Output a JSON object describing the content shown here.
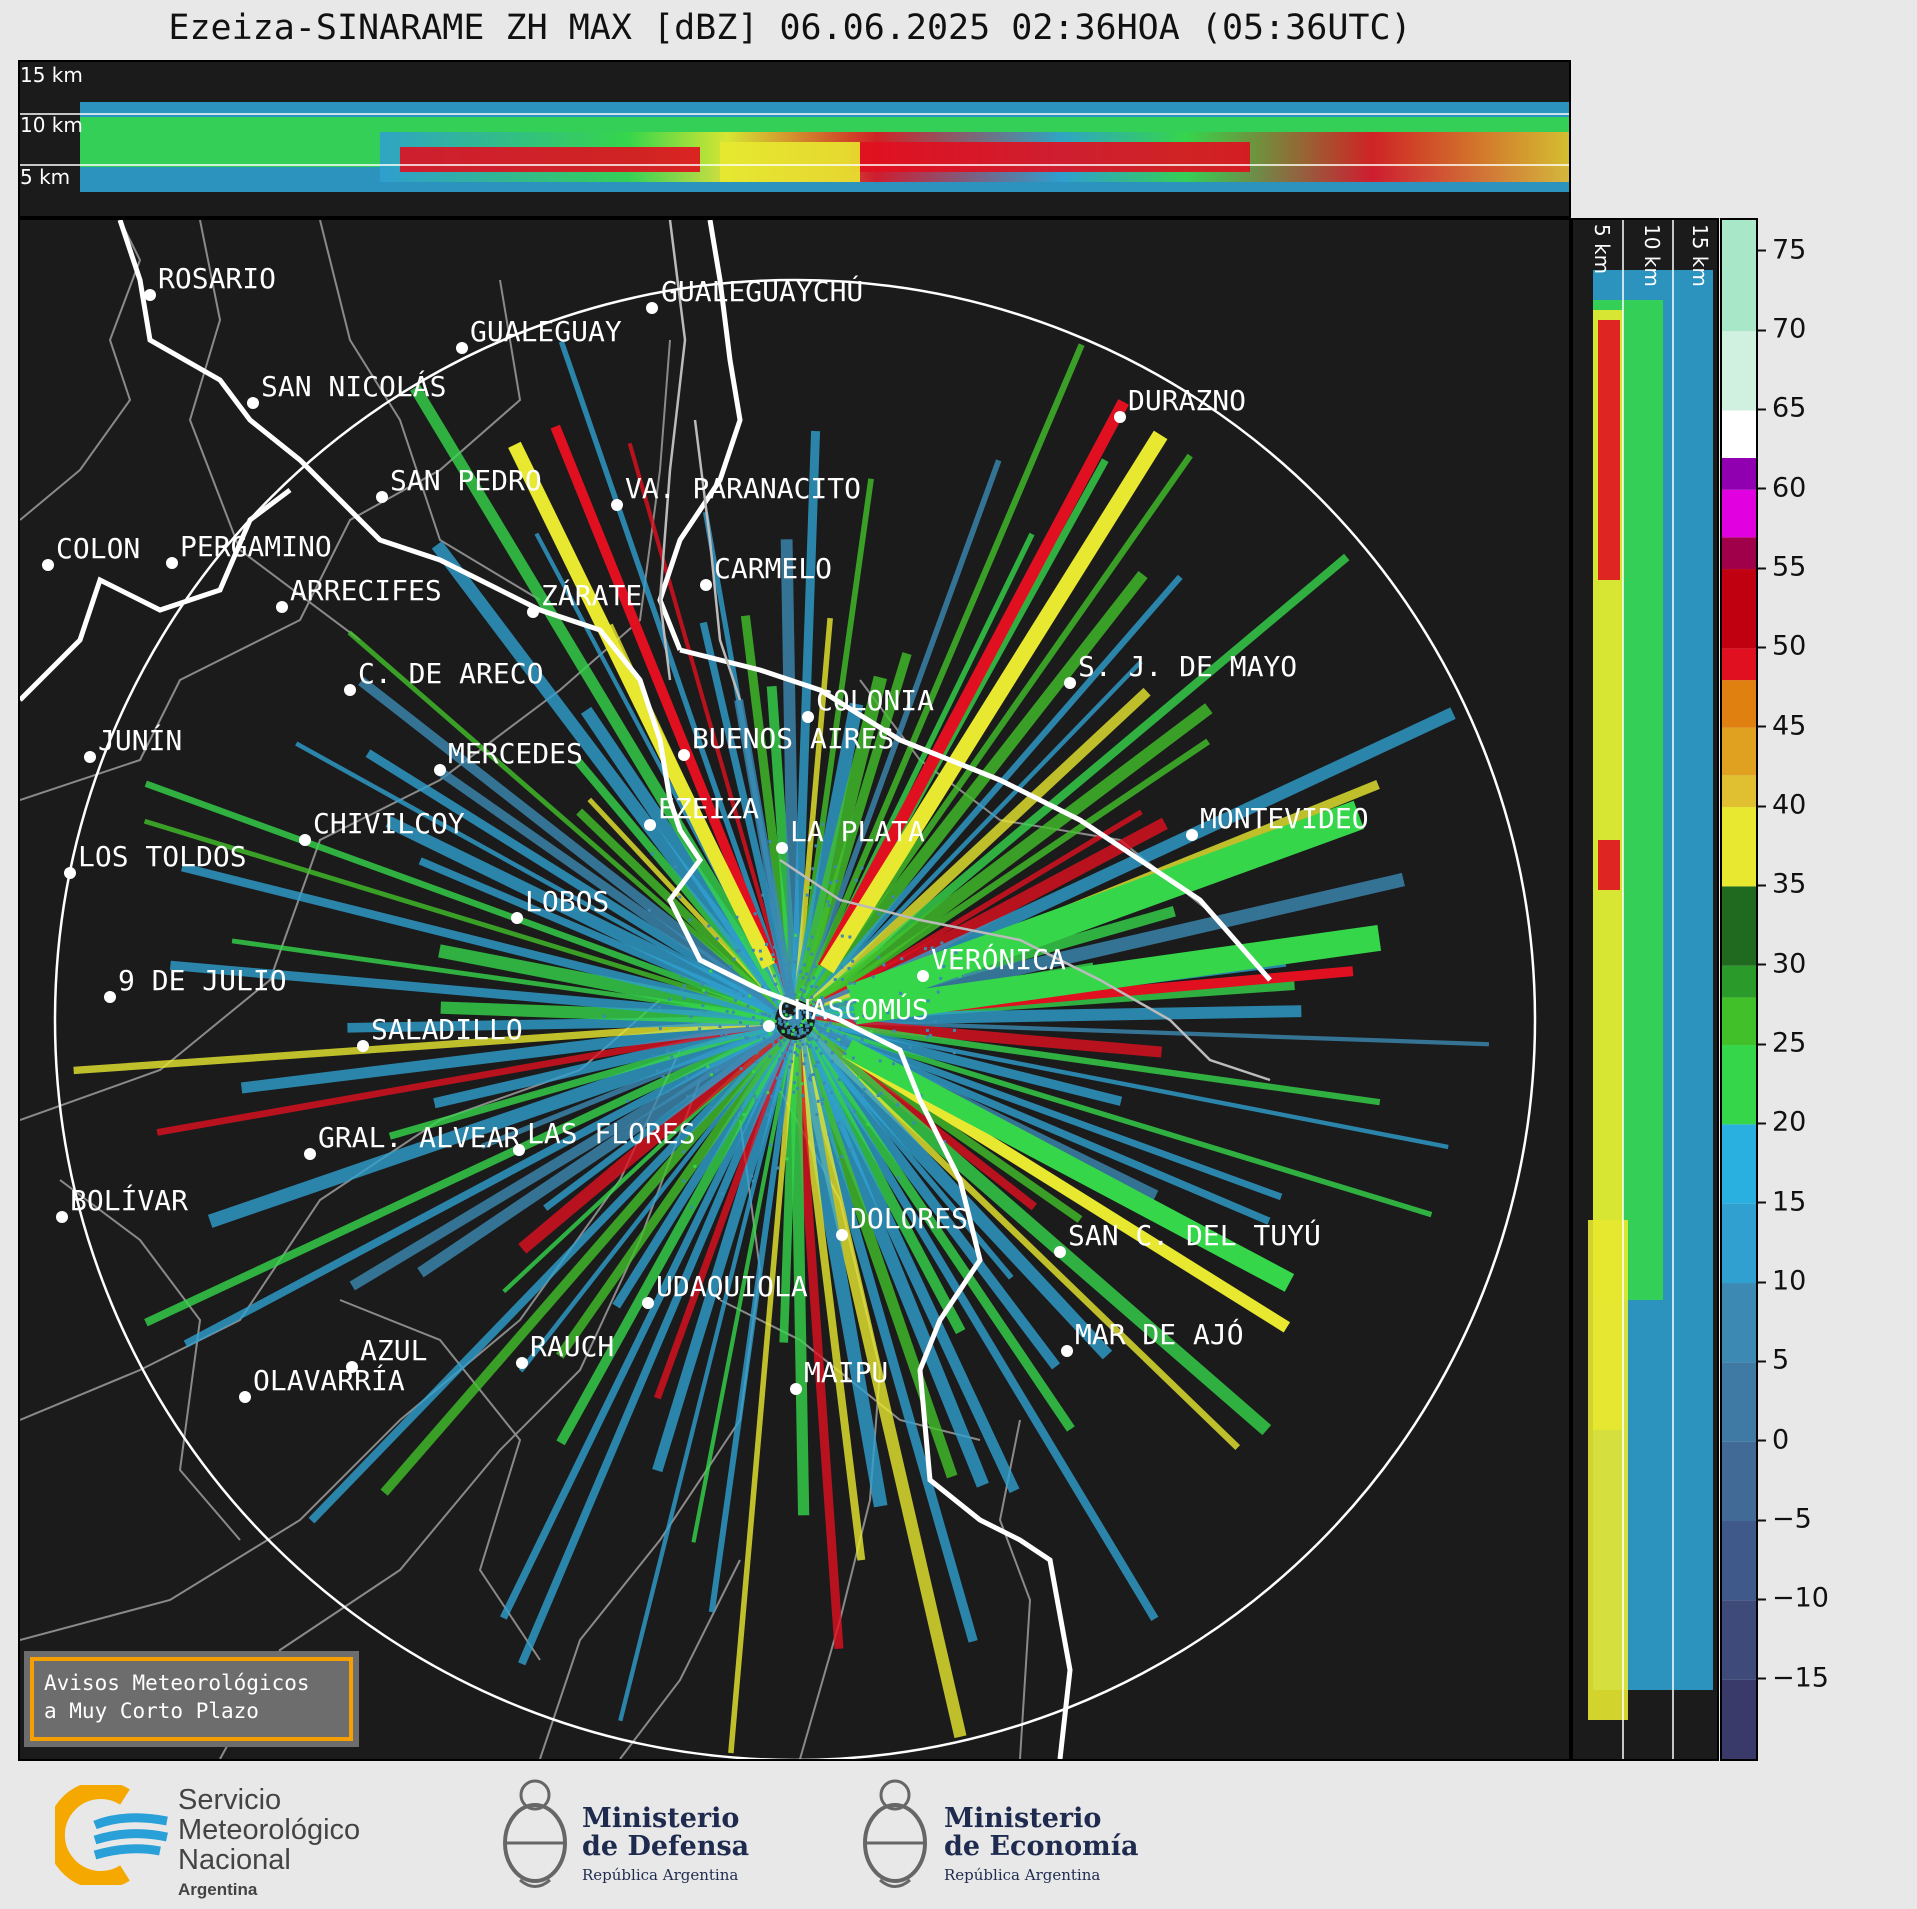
{
  "title": "Ezeiza-SINARAME ZH MAX [dBZ] 06.06.2025 02:36HOA (05:36UTC)",
  "top_profile": {
    "height_labels": [
      "15 km",
      "10 km",
      "5 km"
    ]
  },
  "side_profile": {
    "height_labels": [
      "5 km",
      "10 km",
      "15 km"
    ]
  },
  "colorbar": {
    "unit": "dBZ",
    "ticks": [
      "75",
      "70",
      "65",
      "60",
      "55",
      "50",
      "45",
      "40",
      "35",
      "30",
      "25",
      "20",
      "15",
      "10",
      "5",
      "0",
      "−5",
      "−10",
      "−15"
    ],
    "range": [
      -20,
      77
    ],
    "colors": [
      "#3a3a6a",
      "#3d4a7a",
      "#3f5a8a",
      "#416a97",
      "#3f7aa4",
      "#3c8ab4",
      "#2fa0d0",
      "#2ab0e0",
      "#35d64a",
      "#42c02a",
      "#2a9a2a",
      "#1f6a1f",
      "#e8e830",
      "#e0c030",
      "#e0a020",
      "#e08010",
      "#e01020",
      "#c00010",
      "#a0004a",
      "#e000e0",
      "#9000b0",
      "#ffffff",
      "#d0f0e0",
      "#a8e8c8",
      "#88d8b8"
    ],
    "levels": [
      -20,
      -15,
      -10,
      -5,
      0,
      5,
      10,
      15,
      20,
      25,
      28,
      30,
      35,
      40,
      42,
      45,
      48,
      50,
      55,
      57,
      60,
      62,
      65,
      70,
      77
    ]
  },
  "map": {
    "cities": [
      {
        "name": "ROSARIO"
      },
      {
        "name": "GUALEGUAYCHÚ"
      },
      {
        "name": "GUALEGUAY"
      },
      {
        "name": "SAN NICOLÁS"
      },
      {
        "name": "DURAZNO"
      },
      {
        "name": "SAN PEDRO"
      },
      {
        "name": "VA. PARANACITO"
      },
      {
        "name": "COLON"
      },
      {
        "name": "PERGAMINO"
      },
      {
        "name": "CARMELO"
      },
      {
        "name": "ARRECIFES"
      },
      {
        "name": "ZÁRATE"
      },
      {
        "name": "S. J. DE MAYO"
      },
      {
        "name": "C. DE ARECO"
      },
      {
        "name": "COLONIA"
      },
      {
        "name": "JUNÍN"
      },
      {
        "name": "BUENOS AIRES"
      },
      {
        "name": "MERCEDES"
      },
      {
        "name": "EZEIZA"
      },
      {
        "name": "MONTEVIDEO"
      },
      {
        "name": "CHIVILCOY"
      },
      {
        "name": "LA PLATA"
      },
      {
        "name": "LOS TOLDOS"
      },
      {
        "name": "LOBOS"
      },
      {
        "name": "VERÓNICA"
      },
      {
        "name": "9 DE JULIO"
      },
      {
        "name": "CHASCOMÚS"
      },
      {
        "name": "SALADILLO"
      },
      {
        "name": "GRAL. ALVEAR"
      },
      {
        "name": "LAS FLORES"
      },
      {
        "name": "BOLÍVAR"
      },
      {
        "name": "DOLORES"
      },
      {
        "name": "SAN C. DEL TUYÚ"
      },
      {
        "name": "UDAQUIOLA"
      },
      {
        "name": "AZUL"
      },
      {
        "name": "RAUCH"
      },
      {
        "name": "MAR DE AJÓ"
      },
      {
        "name": "OLAVARRÍA"
      },
      {
        "name": "MAIPU"
      }
    ]
  },
  "warning_box": {
    "line1": "Avisos Meteorológicos",
    "line2": "a Muy Corto Plazo"
  },
  "footer": {
    "smn": {
      "line1": "Servicio",
      "line2": "Meteorológico",
      "line3": "Nacional",
      "line4": "Argentina"
    },
    "defensa": {
      "line1": "Ministerio",
      "line2": "de Defensa",
      "line3": "República Argentina"
    },
    "economia": {
      "line1": "Ministerio",
      "line2": "de Economía",
      "line3": "República Argentina"
    }
  },
  "colors": {
    "warning_border": "#f5a000",
    "map_background": "#1b1b1b",
    "smn_blue": "#2aa0d8",
    "smn_orange": "#f5a800"
  }
}
